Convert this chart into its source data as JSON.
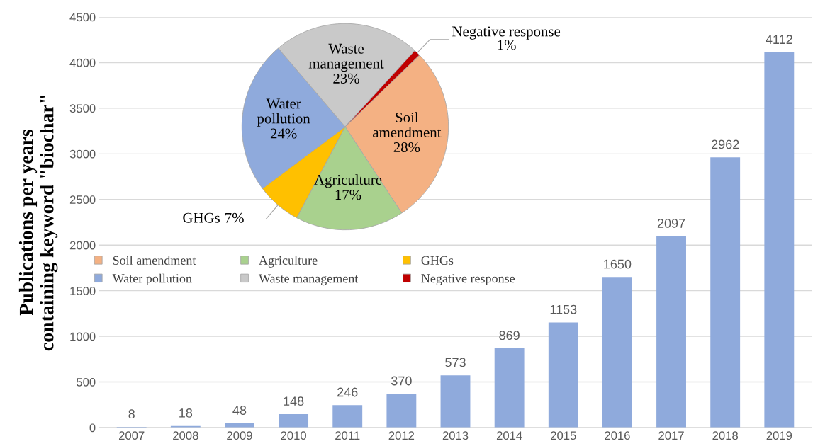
{
  "chart_data": [
    {
      "type": "bar",
      "ylabel": "Publications per years\ncontaining keyword \"biochar\"",
      "categories": [
        "2007",
        "2008",
        "2009",
        "2010",
        "2011",
        "2012",
        "2013",
        "2014",
        "2015",
        "2016",
        "2017",
        "2018",
        "2019"
      ],
      "values": [
        8,
        18,
        48,
        148,
        246,
        370,
        573,
        869,
        1153,
        1650,
        2097,
        2962,
        4112
      ],
      "color": "#8faadc",
      "ylim": [
        0,
        4500
      ],
      "yticks": [
        0,
        500,
        1000,
        1500,
        2000,
        2500,
        3000,
        3500,
        4000,
        4500
      ],
      "grid": "y",
      "data_labels": true
    },
    {
      "type": "pie",
      "categories": [
        "Soil amendment",
        "Agriculture",
        "GHGs",
        "Water pollution",
        "Waste management",
        "Negative response"
      ],
      "values": [
        28,
        17,
        7,
        24,
        23,
        1
      ],
      "colors": [
        "#f4b183",
        "#a9d18e",
        "#ffc000",
        "#8faadc",
        "#c9c9c9",
        "#c00000"
      ],
      "value_labels": [
        "28%",
        "17%",
        "7%",
        "24%",
        "23%",
        "1%"
      ],
      "legend": "bottom"
    }
  ]
}
